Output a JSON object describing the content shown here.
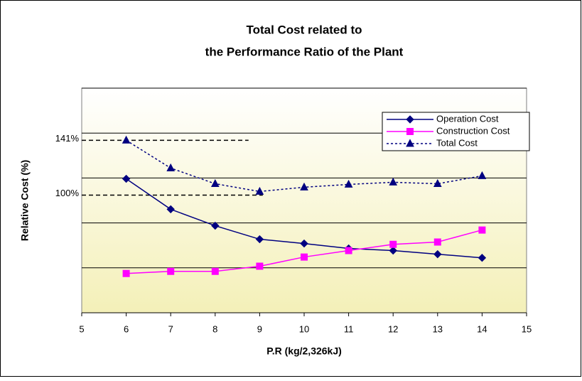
{
  "chart_data": {
    "type": "line",
    "title": [
      "Total Cost related to",
      "the Performance Ratio of the Plant"
    ],
    "xlabel": "P.R (kg/2,326kJ)",
    "ylabel": "Relative Cost (%)",
    "x": [
      6,
      7,
      8,
      9,
      10,
      11,
      12,
      13,
      14
    ],
    "xlim": [
      5,
      15
    ],
    "xticks": [
      5,
      6,
      7,
      8,
      9,
      10,
      11,
      12,
      13,
      14,
      15
    ],
    "ylim": [
      12,
      180
    ],
    "yticks": [
      12,
      45.6,
      79.2,
      112.8,
      146.4,
      180
    ],
    "grid": true,
    "legend": "upper right",
    "series": [
      {
        "name": "Operation Cost",
        "color": "#000080",
        "marker": "diamond",
        "dash": false,
        "values": [
          112.2,
          89.4,
          77.1,
          67.0,
          63.8,
          60.1,
          58.5,
          55.8,
          53.1
        ]
      },
      {
        "name": "Construction Cost",
        "color": "#ff00ff",
        "marker": "square",
        "dash": false,
        "values": [
          41.4,
          43.0,
          43.0,
          46.8,
          53.7,
          58.5,
          63.2,
          64.9,
          73.9
        ]
      },
      {
        "name": "Total Cost",
        "color": "#000080",
        "marker": "triangle",
        "dash": true,
        "values": [
          141,
          120.2,
          108.5,
          102.7,
          105.9,
          108.0,
          109.6,
          108.5,
          114.4
        ]
      }
    ],
    "annotations": [
      {
        "text": "141%",
        "y": 141,
        "x_end": 8.75
      },
      {
        "text": "100%",
        "y": 100,
        "x_end": 9.07
      }
    ]
  }
}
